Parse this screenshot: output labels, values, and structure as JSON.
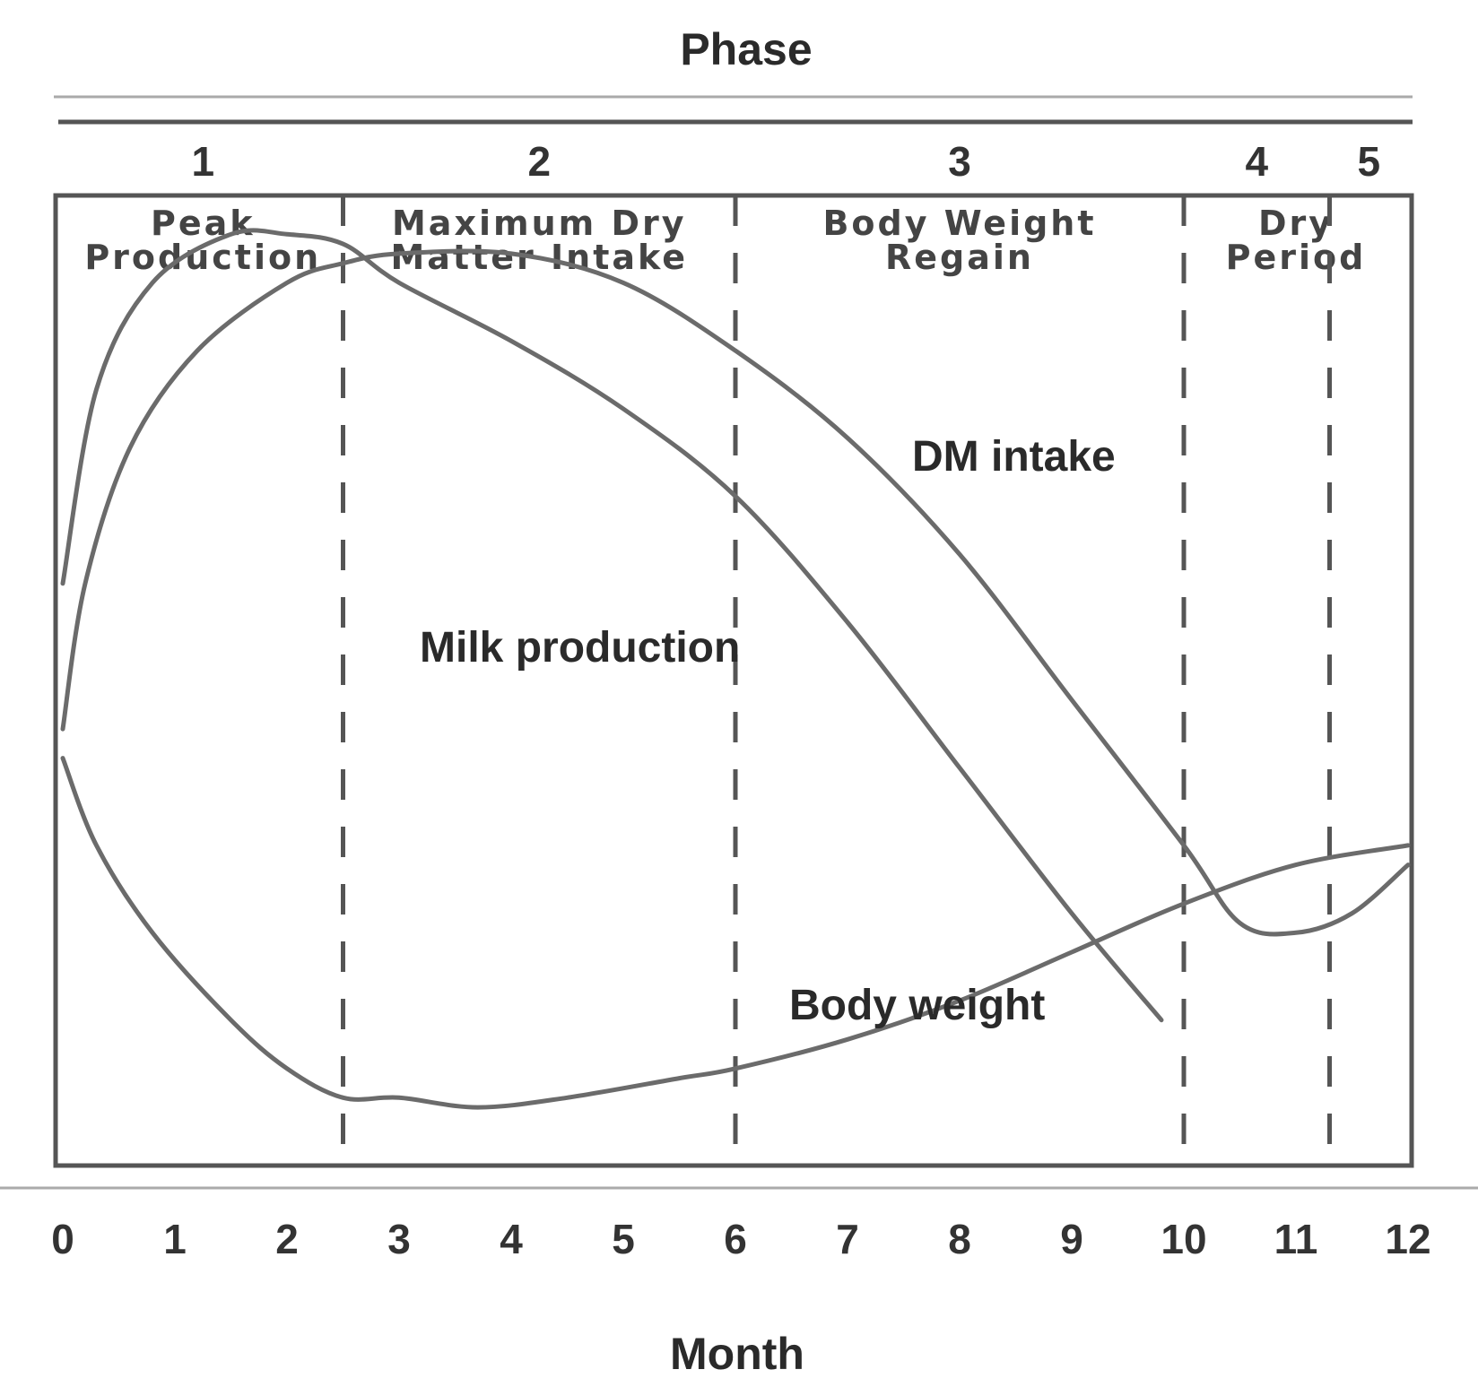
{
  "chart_data": {
    "type": "line",
    "title": "Phase",
    "xlabel": "Month",
    "ylabel": "",
    "xlim": [
      0,
      12
    ],
    "ylim": [
      0,
      100
    ],
    "x_ticks": [
      "0",
      "1",
      "2",
      "3",
      "4",
      "5",
      "6",
      "7",
      "8",
      "9",
      "10",
      "11",
      "12"
    ],
    "grid": false,
    "legend": "none",
    "phases": [
      {
        "number": "1",
        "name_lines": [
          "Peak",
          "Production"
        ],
        "start": 0,
        "end": 2.5
      },
      {
        "number": "2",
        "name_lines": [
          "Maximum Dry",
          "Matter Intake"
        ],
        "start": 2.5,
        "end": 6
      },
      {
        "number": "3",
        "name_lines": [
          "Body Weight",
          "Regain"
        ],
        "start": 6,
        "end": 10
      },
      {
        "number": "4",
        "name_lines": [],
        "start": 10,
        "end": 11.3
      },
      {
        "number": "5",
        "name_lines": [],
        "start": 11.3,
        "end": 12
      }
    ],
    "phase_span_label": {
      "phases": "4-5",
      "lines": [
        "Dry",
        "Period"
      ]
    },
    "series": [
      {
        "name": "Milk production",
        "x": [
          0,
          0.3,
          0.8,
          1.5,
          2.0,
          2.5,
          3.0,
          4.0,
          5.0,
          6.0,
          7.0,
          8.0,
          9.0,
          9.8
        ],
        "values": [
          60,
          80,
          91,
          96,
          96,
          95,
          91,
          85,
          78,
          69,
          56,
          41,
          26,
          15
        ]
      },
      {
        "name": "DM intake",
        "x": [
          0,
          0.2,
          0.6,
          1.2,
          2.0,
          2.5,
          3.0,
          4.0,
          5.0,
          6.0,
          7.0,
          8.0,
          9.0,
          10.0,
          10.5,
          11.0,
          11.5,
          12.0
        ],
        "values": [
          45,
          60,
          74,
          84,
          91,
          93,
          94,
          94,
          91,
          84,
          75,
          63,
          48,
          33,
          25,
          24,
          26,
          31
        ]
      },
      {
        "name": "Body weight",
        "x": [
          0,
          0.3,
          0.8,
          1.5,
          2.0,
          2.5,
          3.0,
          3.7,
          4.5,
          5.5,
          6.0,
          7.0,
          8.0,
          9.0,
          10.0,
          11.0,
          12.0
        ],
        "values": [
          42,
          33,
          24,
          15,
          10,
          7,
          7,
          6,
          7,
          9,
          10,
          13,
          17,
          22,
          27,
          31,
          33
        ]
      }
    ]
  }
}
